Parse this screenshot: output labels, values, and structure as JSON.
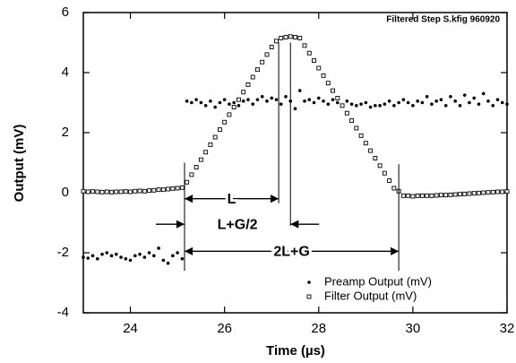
{
  "chart_data": {
    "type": "scatter",
    "title": "Filtered Step S.kfig 960920",
    "x_label": "Time  (µs)",
    "y_label": "Output  (mV)",
    "xlim": [
      23,
      32
    ],
    "xticks": [
      24,
      26,
      28,
      30,
      32
    ],
    "ylim": [
      -4,
      6
    ],
    "yticks": [
      -4,
      -2,
      0,
      2,
      4,
      6
    ],
    "legend": "lower right",
    "x": [
      23,
      23.1,
      23.2,
      23.3,
      23.4,
      23.5,
      23.6,
      23.7,
      23.8,
      23.9,
      24,
      24.1,
      24.2,
      24.3,
      24.4,
      24.5,
      24.6,
      24.7,
      24.8,
      24.9,
      25,
      25.1,
      25.2,
      25.3,
      25.4,
      25.5,
      25.6,
      25.7,
      25.8,
      25.9,
      26,
      26.1,
      26.2,
      26.3,
      26.4,
      26.5,
      26.6,
      26.7,
      26.8,
      26.9,
      27,
      27.1,
      27.2,
      27.3,
      27.4,
      27.5,
      27.6,
      27.7,
      27.8,
      27.9,
      28,
      28.1,
      28.2,
      28.3,
      28.4,
      28.5,
      28.6,
      28.7,
      28.8,
      28.9,
      29,
      29.1,
      29.2,
      29.3,
      29.4,
      29.5,
      29.6,
      29.7,
      29.8,
      29.9,
      30,
      30.1,
      30.2,
      30.3,
      30.4,
      30.5,
      30.6,
      30.7,
      30.8,
      30.9,
      31,
      31.1,
      31.2,
      31.3,
      31.4,
      31.5,
      31.6,
      31.7,
      31.8,
      31.9,
      32
    ],
    "series": [
      {
        "name": "Preamp Output (mV)",
        "marker": "dot",
        "color": "#000000",
        "values": [
          -2.15,
          -2.18,
          -2.1,
          -2.2,
          -2.05,
          -2.0,
          -2.1,
          -2.05,
          -2.15,
          -2.2,
          -2.25,
          -2.1,
          -2.05,
          -2.15,
          -2.0,
          -2.1,
          -1.85,
          -2.25,
          -2.35,
          -2.1,
          -2.0,
          -2.2,
          3.05,
          3.0,
          3.1,
          3.0,
          2.9,
          3.05,
          2.85,
          3.0,
          3.1,
          2.95,
          3.0,
          2.9,
          3.05,
          3.1,
          2.95,
          3.1,
          3.2,
          3.05,
          3.15,
          3.1,
          2.95,
          3.2,
          3.05,
          2.8,
          3.4,
          3.05,
          3.1,
          3.0,
          3.15,
          3.05,
          2.95,
          3.1,
          3.0,
          2.9,
          3.05,
          2.95,
          2.9,
          2.95,
          3.0,
          2.85,
          2.9,
          2.9,
          2.95,
          3.05,
          2.9,
          3.0,
          3.1,
          3.0,
          2.9,
          3.05,
          3.0,
          3.2,
          2.95,
          3.05,
          3.1,
          2.9,
          3.2,
          3.05,
          2.9,
          3.25,
          3.0,
          3.15,
          2.95,
          3.3,
          3.05,
          2.9,
          3.1,
          3.0,
          2.95
        ]
      },
      {
        "name": "Filter Output (mV)",
        "marker": "square",
        "color": "#000000",
        "values": [
          0.05,
          0.03,
          0.04,
          0.03,
          0.02,
          0.03,
          0.02,
          0.03,
          0.03,
          0.04,
          0.03,
          0.05,
          0.06,
          0.05,
          0.07,
          0.08,
          0.1,
          0.1,
          0.12,
          0.14,
          0.15,
          0.17,
          0.35,
          0.6,
          0.85,
          1.1,
          1.35,
          1.6,
          1.85,
          2.1,
          2.35,
          2.6,
          2.85,
          3.1,
          3.35,
          3.6,
          3.85,
          4.1,
          4.35,
          4.6,
          4.85,
          5.05,
          5.15,
          5.18,
          5.2,
          5.18,
          5.15,
          4.9,
          4.65,
          4.4,
          4.15,
          3.9,
          3.65,
          3.4,
          3.15,
          2.9,
          2.65,
          2.4,
          2.15,
          1.9,
          1.65,
          1.4,
          1.15,
          0.9,
          0.65,
          0.4,
          0.15,
          0.05,
          -0.1,
          -0.1,
          -0.12,
          -0.1,
          -0.1,
          -0.1,
          -0.1,
          -0.09,
          -0.08,
          -0.08,
          -0.07,
          -0.06,
          -0.05,
          -0.04,
          -0.03,
          -0.02,
          -0.01,
          0.0,
          0.01,
          0.02,
          0.03,
          0.03,
          0.04
        ]
      }
    ],
    "vlines": [
      {
        "x": 25.15,
        "y0": 1.0,
        "y1": -2.6
      },
      {
        "x": 27.15,
        "y0": 5.0,
        "y1": -0.35
      },
      {
        "x": 27.4,
        "y0": 5.0,
        "y1": -1.1
      },
      {
        "x": 29.7,
        "y0": 0.95,
        "y1": -2.6
      }
    ],
    "annotations": [
      {
        "text": "L",
        "x0": 25.15,
        "x1": 27.15,
        "y": -0.2,
        "style": "outward"
      },
      {
        "text": "L+G/2",
        "x0": 25.15,
        "x1": 27.4,
        "y": -1.05,
        "style": "inward"
      },
      {
        "text": "2L+G",
        "x0": 25.15,
        "x1": 29.7,
        "y": -1.95,
        "style": "outward"
      }
    ]
  }
}
